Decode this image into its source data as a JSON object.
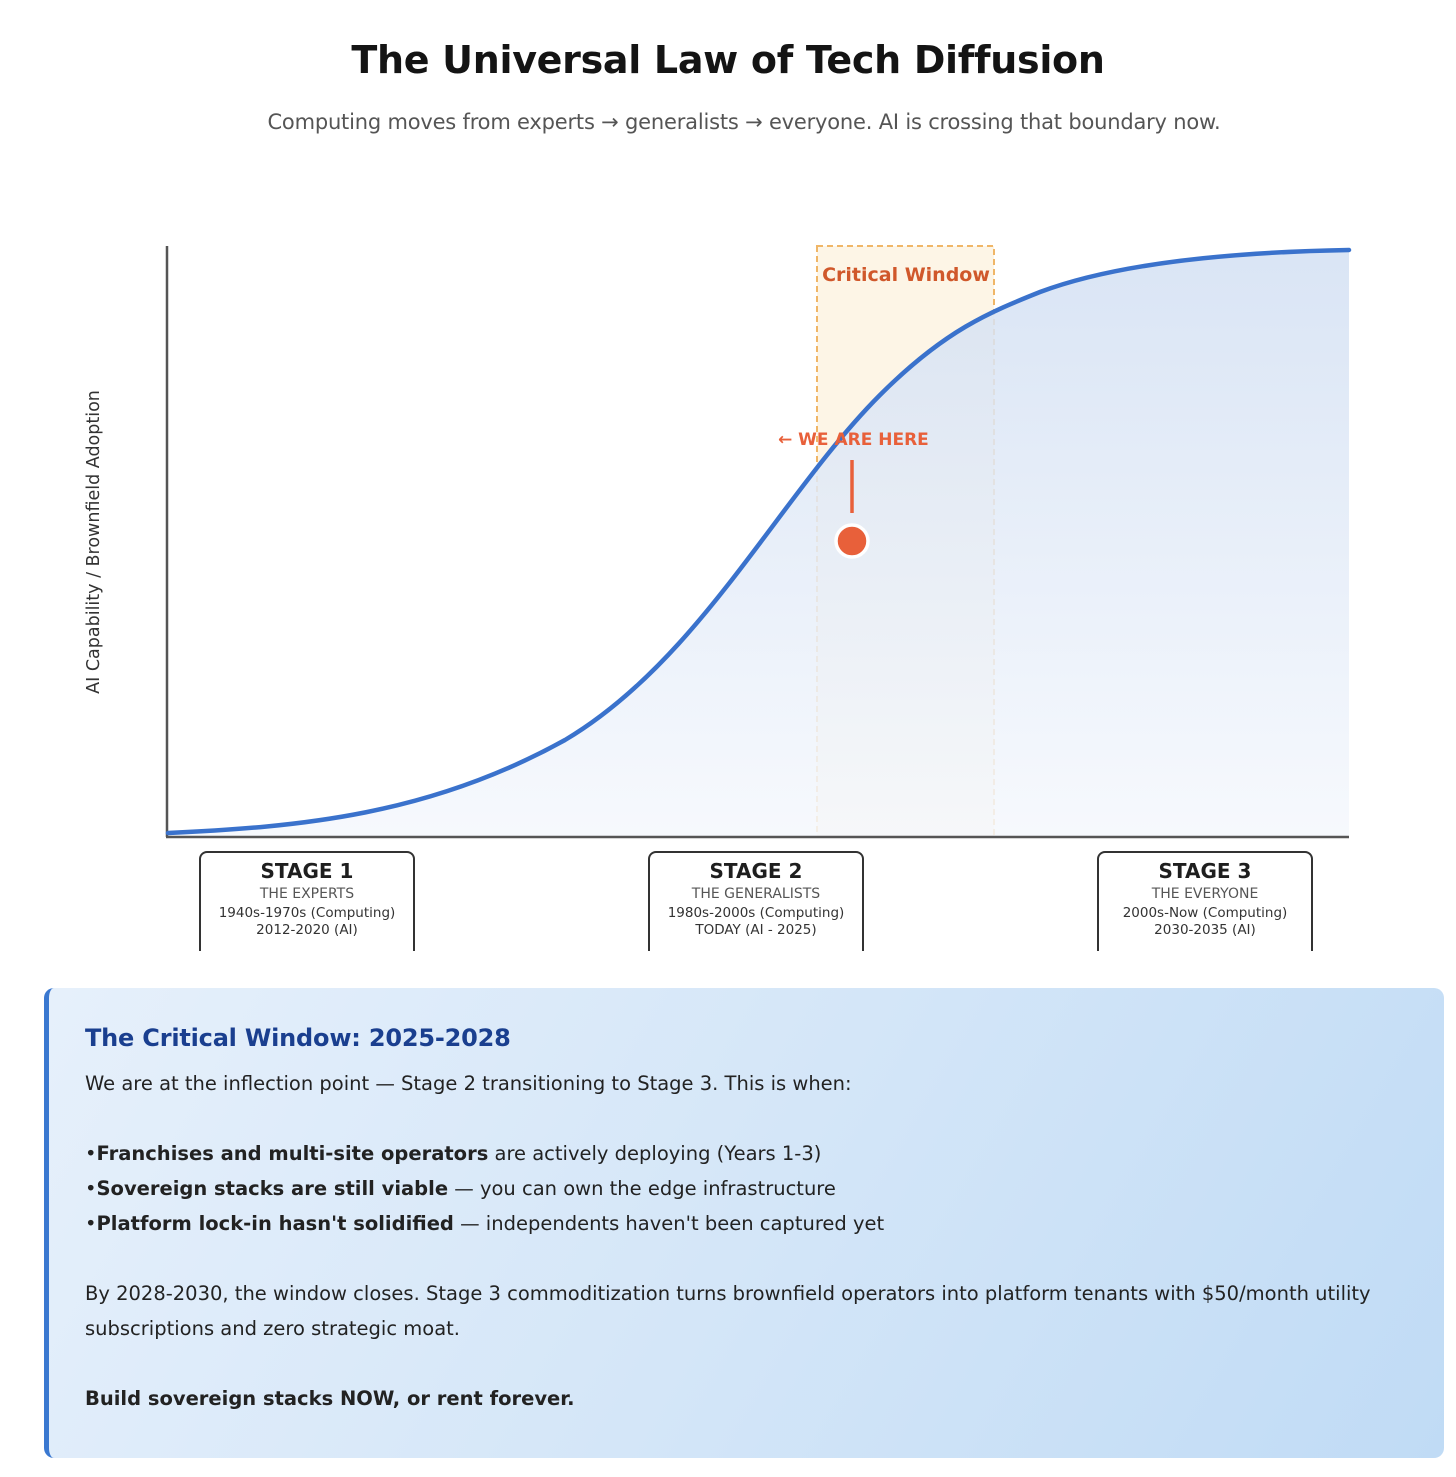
{
  "header": {
    "title": "The Universal Law of Tech Diffusion",
    "subtitle": "Computing moves from experts → generalists → everyone. AI is crossing that boundary now."
  },
  "diagram": {
    "y_axis_label": "AI Capability / Brownfield Adoption",
    "window_label": "Critical Window",
    "marker_label": "← WE ARE HERE",
    "colors": {
      "curve": "#3a72cc",
      "window_border": "#f0b667",
      "window_fill": "#fdf5e6",
      "marker": "#e8603a",
      "axis": "#555555"
    },
    "stages": [
      {
        "title": "STAGE 1",
        "name": "THE EXPERTS",
        "dates_1": "1940s-1970s (Computing)",
        "dates_2": "2012-2020 (AI)"
      },
      {
        "title": "STAGE 2",
        "name": "THE GENERALISTS",
        "dates_1": "1980s-2000s (Computing)",
        "dates_2": "TODAY (AI - 2025)"
      },
      {
        "title": "STAGE 3",
        "name": "THE EVERYONE",
        "dates_1": "2000s-Now (Computing)",
        "dates_2": "2030-2035 (AI)"
      }
    ]
  },
  "callout": {
    "title": "The Critical Window: 2025-2028",
    "intro": "We are at the inflection point — Stage 2 transitioning to Stage 3. This is when:",
    "points": [
      {
        "bold": "Franchises and multi-site operators",
        "rest": " are actively deploying (Years 1-3)"
      },
      {
        "bold": "Sovereign stacks are still viable",
        "rest": " — you can own the edge infrastructure"
      },
      {
        "bold": "Platform lock-in hasn't solidified",
        "rest": " — independents haven't been captured yet"
      }
    ],
    "closing": "By 2028-2030, the window closes. Stage 3 commoditization turns brownfield operators into platform tenants with $50/month utility subscriptions and zero strategic moat.",
    "cta": "Build sovereign stacks NOW, or rent forever."
  }
}
